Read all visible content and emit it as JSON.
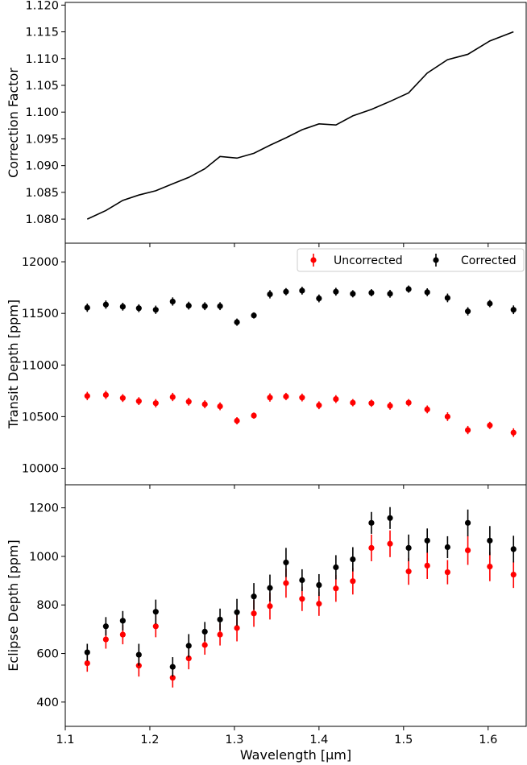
{
  "chart_data": [
    {
      "type": "line",
      "ylabel": "Correction Factor",
      "xlim": [
        1.1,
        1.645
      ],
      "ylim": [
        1.0755,
        1.1205
      ],
      "yticks": [
        1.08,
        1.085,
        1.09,
        1.095,
        1.1,
        1.105,
        1.11,
        1.115,
        1.12
      ],
      "ytick_labels": [
        "1.080",
        "1.085",
        "1.090",
        "1.095",
        "1.100",
        "1.105",
        "1.110",
        "1.115",
        "1.120"
      ],
      "series": [
        {
          "color": "#000000",
          "x": [
            1.126,
            1.148,
            1.168,
            1.187,
            1.207,
            1.227,
            1.246,
            1.265,
            1.283,
            1.303,
            1.323,
            1.342,
            1.361,
            1.38,
            1.4,
            1.42,
            1.44,
            1.462,
            1.484,
            1.506,
            1.528,
            1.552,
            1.576,
            1.602,
            1.63
          ],
          "values": [
            1.08,
            1.0816,
            1.0835,
            1.0845,
            1.0853,
            1.0866,
            1.0878,
            1.0894,
            1.0917,
            1.0914,
            1.0923,
            1.0938,
            1.0952,
            1.0967,
            1.0978,
            1.0976,
            1.0993,
            1.1005,
            1.102,
            1.1036,
            1.1073,
            1.1098,
            1.1108,
            1.1133,
            1.115
          ]
        }
      ]
    },
    {
      "type": "scatter",
      "ylabel": "Transit Depth [ppm]",
      "xlim": [
        1.1,
        1.645
      ],
      "ylim": [
        9840,
        12180
      ],
      "yticks": [
        10000,
        10500,
        11000,
        11500,
        12000
      ],
      "ytick_labels": [
        "10000",
        "10500",
        "11000",
        "11500",
        "12000"
      ],
      "legend": "top-right",
      "series": [
        {
          "name": "Uncorrected",
          "color": "#ff0000",
          "x": [
            1.126,
            1.148,
            1.168,
            1.187,
            1.207,
            1.227,
            1.246,
            1.265,
            1.283,
            1.303,
            1.323,
            1.342,
            1.361,
            1.38,
            1.4,
            1.42,
            1.44,
            1.462,
            1.484,
            1.506,
            1.528,
            1.552,
            1.576,
            1.602,
            1.63
          ],
          "values": [
            10700,
            10710,
            10680,
            10650,
            10630,
            10690,
            10645,
            10620,
            10600,
            10460,
            10510,
            10685,
            10695,
            10685,
            10610,
            10670,
            10635,
            10630,
            10605,
            10635,
            10570,
            10500,
            10370,
            10415,
            10345
          ],
          "errors": [
            40,
            40,
            38,
            38,
            40,
            40,
            38,
            38,
            38,
            35,
            30,
            40,
            35,
            38,
            38,
            38,
            35,
            35,
            38,
            35,
            38,
            42,
            40,
            35,
            42
          ]
        },
        {
          "name": "Corrected",
          "color": "#000000",
          "x": [
            1.126,
            1.148,
            1.168,
            1.187,
            1.207,
            1.227,
            1.246,
            1.265,
            1.283,
            1.303,
            1.323,
            1.342,
            1.361,
            1.38,
            1.4,
            1.42,
            1.44,
            1.462,
            1.484,
            1.506,
            1.528,
            1.552,
            1.576,
            1.602,
            1.63
          ],
          "values": [
            11555,
            11585,
            11565,
            11550,
            11535,
            11615,
            11575,
            11570,
            11570,
            11415,
            11480,
            11685,
            11710,
            11720,
            11645,
            11710,
            11690,
            11700,
            11690,
            11735,
            11705,
            11650,
            11520,
            11595,
            11535
          ],
          "errors": [
            40,
            40,
            38,
            38,
            40,
            40,
            38,
            38,
            38,
            35,
            30,
            40,
            35,
            38,
            38,
            38,
            35,
            35,
            38,
            35,
            38,
            42,
            40,
            35,
            42
          ]
        }
      ]
    },
    {
      "type": "scatter",
      "xlabel": "Wavelength [μm]",
      "ylabel": "Eclipse Depth [ppm]",
      "xlim": [
        1.1,
        1.645
      ],
      "ylim": [
        300,
        1295
      ],
      "xticks": [
        1.1,
        1.2,
        1.3,
        1.4,
        1.5,
        1.6
      ],
      "xtick_labels": [
        "1.1",
        "1.2",
        "1.3",
        "1.4",
        "1.5",
        "1.6"
      ],
      "yticks": [
        400,
        600,
        800,
        1000,
        1200
      ],
      "ytick_labels": [
        "400",
        "600",
        "800",
        "1000",
        "1200"
      ],
      "series": [
        {
          "name": "Uncorrected",
          "color": "#ff0000",
          "x": [
            1.126,
            1.148,
            1.168,
            1.187,
            1.207,
            1.227,
            1.246,
            1.265,
            1.283,
            1.303,
            1.323,
            1.342,
            1.361,
            1.38,
            1.4,
            1.42,
            1.44,
            1.462,
            1.484,
            1.506,
            1.528,
            1.552,
            1.576,
            1.602,
            1.63
          ],
          "values": [
            560,
            658,
            678,
            550,
            712,
            500,
            580,
            635,
            678,
            705,
            765,
            795,
            890,
            825,
            805,
            868,
            898,
            1035,
            1052,
            938,
            962,
            935,
            1025,
            958,
            925
          ],
          "errors": [
            35,
            38,
            40,
            45,
            45,
            40,
            45,
            40,
            45,
            55,
            55,
            55,
            60,
            50,
            50,
            55,
            55,
            55,
            55,
            55,
            55,
            50,
            60,
            60,
            55
          ]
        },
        {
          "name": "Corrected",
          "color": "#000000",
          "x": [
            1.126,
            1.148,
            1.168,
            1.187,
            1.207,
            1.227,
            1.246,
            1.265,
            1.283,
            1.303,
            1.323,
            1.342,
            1.361,
            1.38,
            1.4,
            1.42,
            1.44,
            1.462,
            1.484,
            1.506,
            1.528,
            1.552,
            1.576,
            1.602,
            1.63
          ],
          "values": [
            605,
            712,
            735,
            595,
            772,
            545,
            632,
            690,
            740,
            770,
            835,
            870,
            975,
            902,
            882,
            955,
            988,
            1138,
            1158,
            1035,
            1065,
            1038,
            1138,
            1065,
            1030
          ],
          "errors": [
            35,
            38,
            40,
            45,
            50,
            40,
            48,
            40,
            45,
            55,
            55,
            55,
            60,
            45,
            45,
            50,
            50,
            45,
            45,
            55,
            50,
            45,
            55,
            60,
            55
          ]
        }
      ]
    }
  ]
}
